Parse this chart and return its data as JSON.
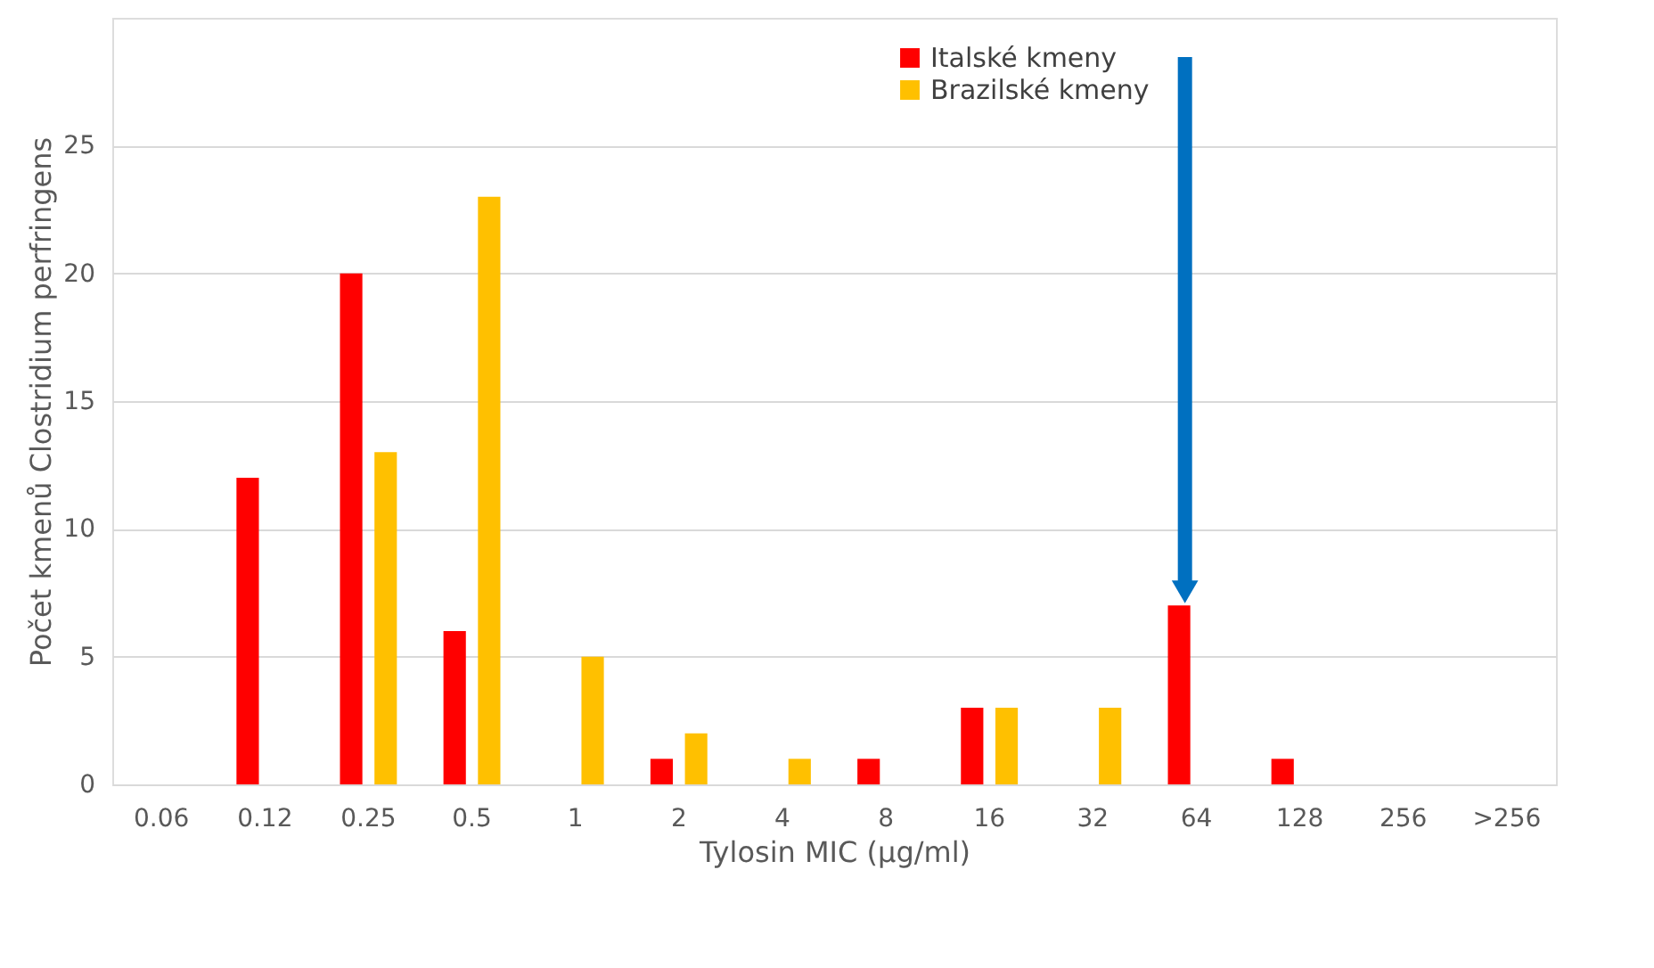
{
  "chart_data": {
    "type": "bar",
    "xlabel": "Tylosin MIC (µg/ml)",
    "ylabel": "Počet kmenů  Clostridium perfringens",
    "categories": [
      "0.06",
      "0.12",
      "0.25",
      "0.5",
      "1",
      "2",
      "4",
      "8",
      "16",
      "32",
      "64",
      "128",
      "256",
      ">256"
    ],
    "series": [
      {
        "name": "Italské kmeny",
        "color": "#ff0000",
        "values": [
          0,
          12,
          20,
          6,
          0,
          1,
          0,
          1,
          3,
          0,
          7,
          1,
          0,
          0
        ]
      },
      {
        "name": "Brazilské kmeny",
        "color": "#ffc000",
        "values": [
          0,
          0,
          13,
          23,
          5,
          2,
          1,
          0,
          3,
          3,
          0,
          0,
          0,
          0
        ]
      }
    ],
    "ylim": [
      0,
      30
    ],
    "yticks": [
      0,
      5,
      10,
      15,
      20,
      25
    ],
    "grid": "y",
    "legend": "top"
  }
}
